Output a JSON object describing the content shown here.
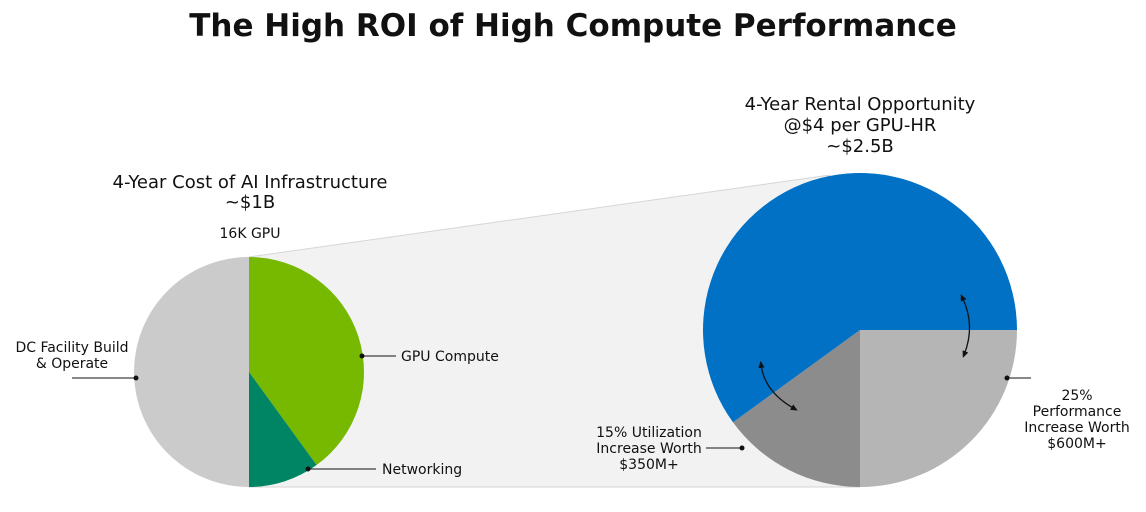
{
  "title": "The High ROI of High Compute Performance",
  "colors": {
    "light_gray": "#cbcbcb",
    "green": "#76b900",
    "teal": "#008564",
    "blue": "#0071c5",
    "mid_gray": "#8c8c8c",
    "silver": "#b5b5b5",
    "zoom": "#f2f2f2"
  },
  "chart_data": [
    {
      "type": "pie",
      "title_lines": [
        "4-Year Cost of AI Infrastructure",
        "~$1B"
      ],
      "subtitle": "16K GPU",
      "slices": [
        {
          "label": "GPU Compute",
          "value": 40,
          "color": "#76b900"
        },
        {
          "label": "Networking",
          "value": 10,
          "color": "#008564"
        },
        {
          "label_lines": [
            "DC Facility Build",
            "& Operate"
          ],
          "value": 50,
          "color": "#cbcbcb"
        }
      ]
    },
    {
      "type": "pie",
      "title_lines": [
        "4-Year Rental Opportunity",
        "@$4 per GPU-HR",
        "~$2.5B"
      ],
      "slices": [
        {
          "label": "",
          "value": 60,
          "color": "#0071c5"
        },
        {
          "label_lines": [
            "25%",
            "Performance",
            "Increase Worth",
            "$600M+"
          ],
          "value": 25,
          "color": "#b5b5b5"
        },
        {
          "label_lines": [
            "15% Utilization",
            "Increase Worth",
            "$350M+"
          ],
          "value": 15,
          "color": "#8c8c8c"
        }
      ]
    }
  ]
}
